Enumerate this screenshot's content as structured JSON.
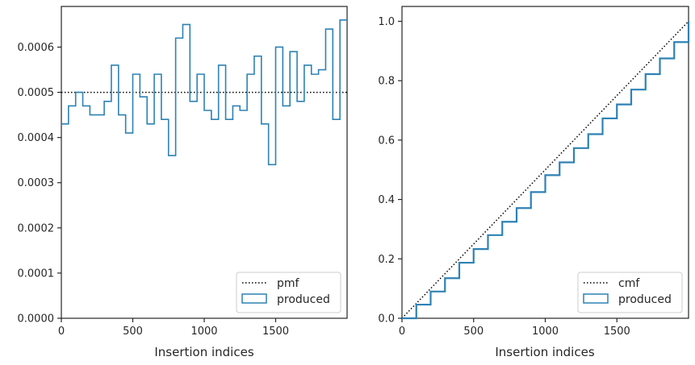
{
  "colors": {
    "series": "#2e82b4",
    "reference": "#000000",
    "axes": "#262626"
  },
  "chart_data": [
    {
      "type": "line",
      "xlabel": "Insertion indices",
      "ylabel": "",
      "xlim": [
        0,
        2000
      ],
      "ylim": [
        0,
        0.00069
      ],
      "xticks": [
        "0",
        "500",
        "1000",
        "1500"
      ],
      "xtick_values": [
        0,
        500,
        1000,
        1500
      ],
      "yticks": [
        "0.0000",
        "0.0001",
        "0.0002",
        "0.0003",
        "0.0004",
        "0.0005",
        "0.0006"
      ],
      "ytick_values": [
        0,
        0.0001,
        0.0002,
        0.0003,
        0.0004,
        0.0005,
        0.0006
      ],
      "grid": false,
      "legend_position": "lower-right",
      "series": [
        {
          "name": "pmf",
          "style": "dotted",
          "x": [
            0,
            2000
          ],
          "values": [
            0.0005,
            0.0005
          ]
        },
        {
          "name": "produced",
          "style": "step",
          "bin_edges": [
            0,
            50,
            100,
            150,
            200,
            250,
            300,
            350,
            400,
            450,
            500,
            550,
            600,
            650,
            700,
            750,
            800,
            850,
            900,
            950,
            1000,
            1050,
            1100,
            1150,
            1200,
            1250,
            1300,
            1350,
            1400,
            1450,
            1500,
            1550,
            1600,
            1650,
            1700,
            1750,
            1800,
            1850,
            1900,
            1950,
            2000
          ],
          "values": [
            0.00043,
            0.00047,
            0.0005,
            0.00047,
            0.00045,
            0.00045,
            0.00048,
            0.00056,
            0.00045,
            0.00041,
            0.00054,
            0.00049,
            0.00043,
            0.00054,
            0.00044,
            0.00036,
            0.00062,
            0.00065,
            0.00048,
            0.00054,
            0.00046,
            0.00044,
            0.00056,
            0.00044,
            0.00047,
            0.00046,
            0.00054,
            0.00058,
            0.00043,
            0.00034,
            0.0006,
            0.00047,
            0.00059,
            0.00048,
            0.00056,
            0.00054,
            0.00055,
            0.00064,
            0.00044,
            0.00066
          ]
        }
      ]
    },
    {
      "type": "line",
      "xlabel": "Insertion indices",
      "ylabel": "",
      "xlim": [
        0,
        2000
      ],
      "ylim": [
        0,
        1.05
      ],
      "xticks": [
        "0",
        "500",
        "1000",
        "1500"
      ],
      "xtick_values": [
        0,
        500,
        1000,
        1500
      ],
      "yticks": [
        "0.0",
        "0.2",
        "0.4",
        "0.6",
        "0.8",
        "1.0"
      ],
      "ytick_values": [
        0,
        0.2,
        0.4,
        0.6,
        0.8,
        1.0
      ],
      "grid": false,
      "legend_position": "lower-right",
      "series": [
        {
          "name": "cmf",
          "style": "dotted",
          "x": [
            0,
            2000
          ],
          "values": [
            0,
            1.0
          ]
        },
        {
          "name": "produced",
          "style": "step",
          "x": [
            0,
            100,
            200,
            300,
            400,
            500,
            600,
            700,
            800,
            900,
            1000,
            1100,
            1200,
            1300,
            1400,
            1500,
            1600,
            1700,
            1800,
            1900,
            2000
          ],
          "values": [
            0,
            0.046,
            0.09,
            0.135,
            0.187,
            0.233,
            0.28,
            0.325,
            0.371,
            0.425,
            0.482,
            0.525,
            0.573,
            0.62,
            0.673,
            0.72,
            0.77,
            0.822,
            0.875,
            0.93,
            1.0
          ]
        }
      ]
    }
  ]
}
